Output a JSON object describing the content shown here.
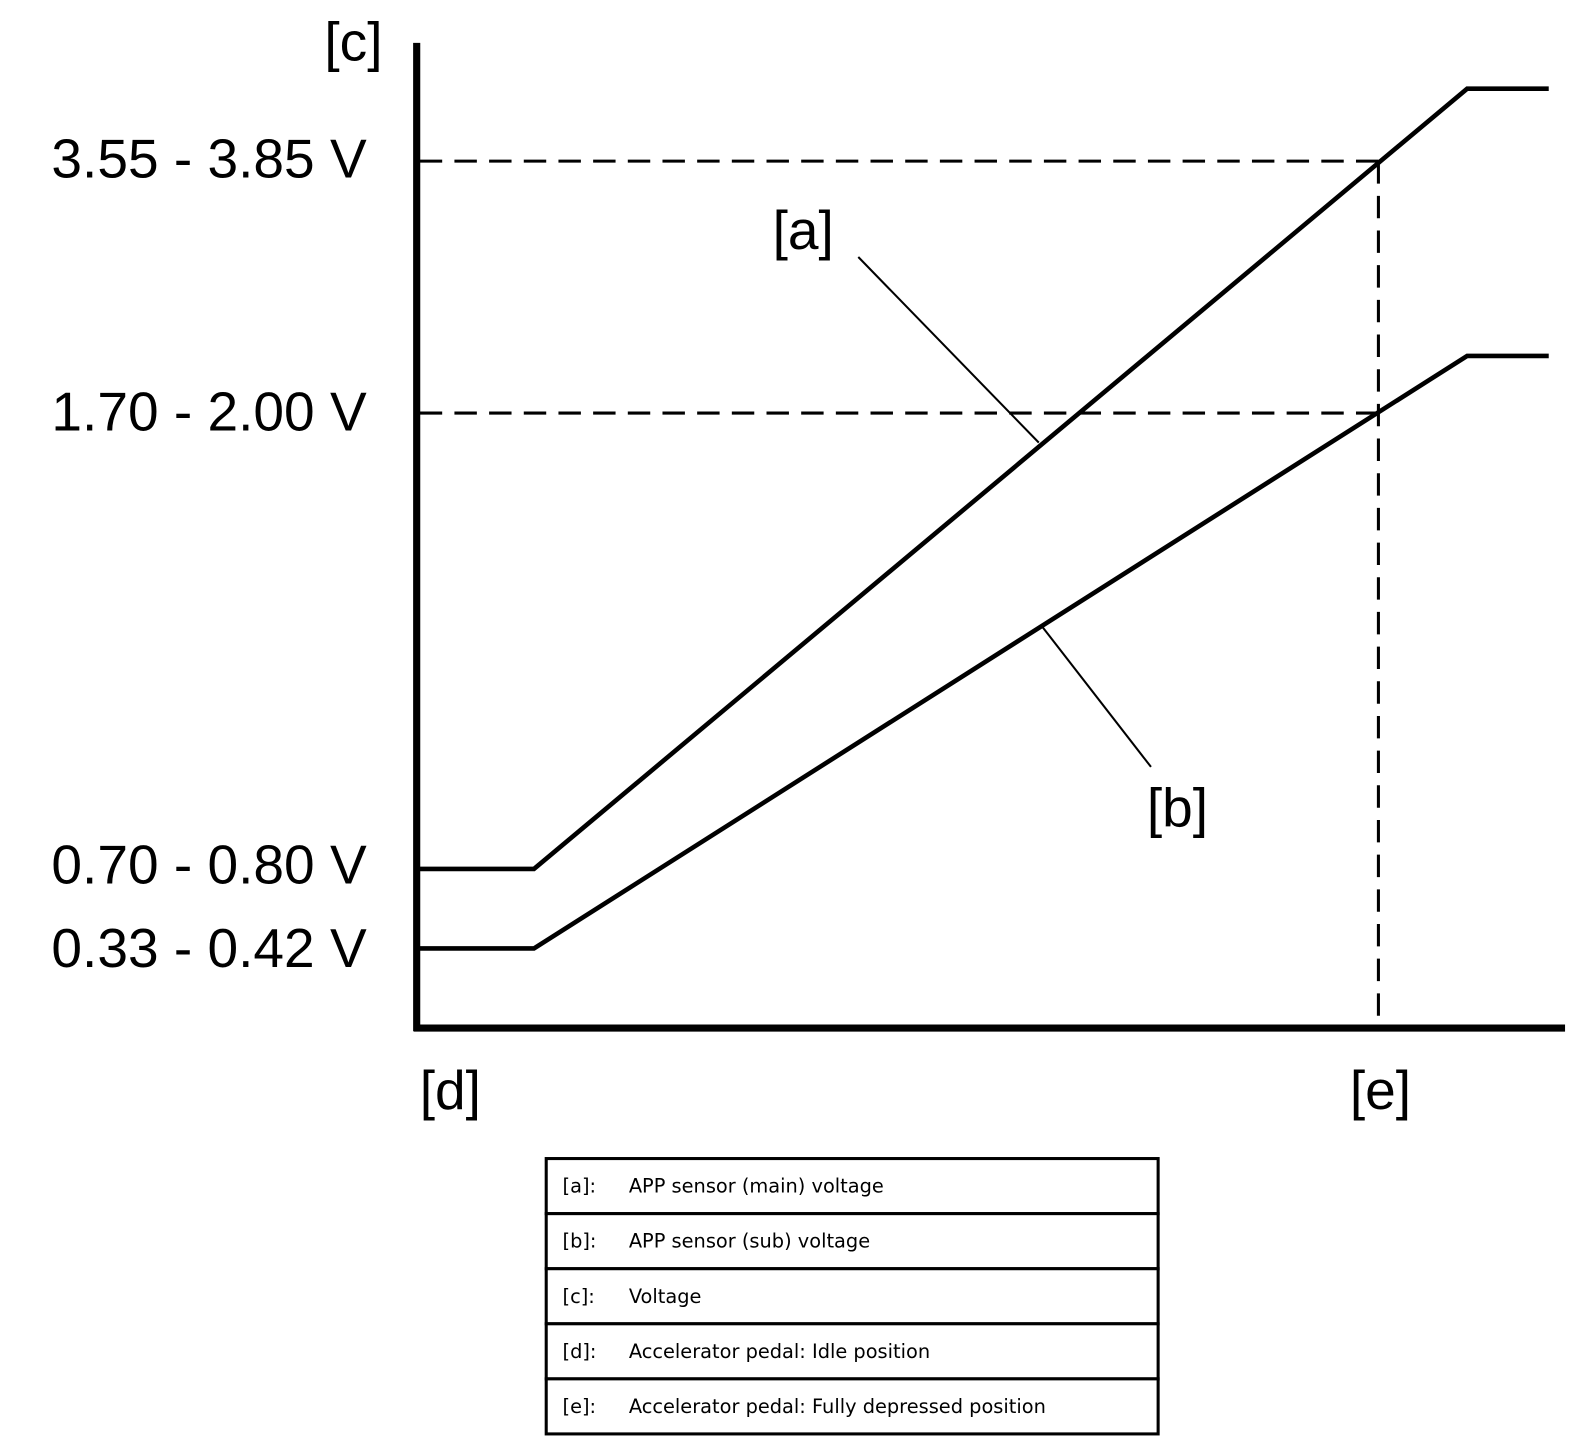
{
  "diagram": {
    "y_axis_label": "[c]",
    "y_labels": [
      "3.55 - 3.85 V",
      "1.70 - 2.00 V",
      "0.70 - 0.80 V",
      "0.33 - 0.42 V"
    ],
    "x_labels": [
      "[d]",
      "[e]"
    ],
    "curve_labels": [
      "[a]",
      "[b]"
    ]
  },
  "legend": {
    "rows": [
      [
        "[a]:",
        "APP sensor (main) voltage"
      ],
      [
        "[b]:",
        "APP sensor (sub) voltage"
      ],
      [
        "[c]:",
        "Voltage"
      ],
      [
        "[d]:",
        "Accelerator pedal: Idle position"
      ],
      [
        "[e]:",
        "Accelerator pedal: Fully depressed position"
      ]
    ]
  }
}
